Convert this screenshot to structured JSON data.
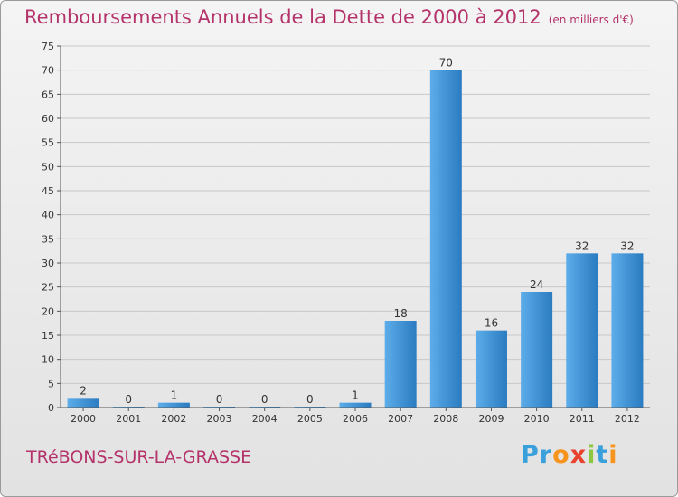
{
  "header": {
    "title": "Remboursements Annuels de la Dette de 2000 à 2012",
    "unit": "(en milliers d'€)"
  },
  "footer": {
    "commune": "TRéBONS-SUR-LA-GRASSE",
    "logo_letters": [
      "P",
      "r",
      "o",
      "x",
      "i",
      "t",
      "i"
    ],
    "logo_colors": [
      "#3aa0dc",
      "#3aa0dc",
      "#f7941d",
      "#e8432e",
      "#8dc63f",
      "#3aa0dc",
      "#f7941d"
    ]
  },
  "colors": {
    "bar_light": "#5dadea",
    "bar_dark": "#2a7bc0",
    "grid": "#c8c8c8",
    "title": "#b4336a"
  },
  "chart_data": {
    "type": "bar",
    "categories": [
      "2000",
      "2001",
      "2002",
      "2003",
      "2004",
      "2005",
      "2006",
      "2007",
      "2008",
      "2009",
      "2010",
      "2011",
      "2012"
    ],
    "values": [
      2,
      0,
      1,
      0,
      0,
      0,
      1,
      18,
      70,
      16,
      24,
      32,
      32
    ],
    "data_labels": [
      "2",
      "0",
      "1",
      "0",
      "0",
      "0",
      "1",
      "18",
      "70",
      "16",
      "24",
      "32",
      "32"
    ],
    "ylim": [
      0,
      75
    ],
    "yticks": [
      0,
      5,
      10,
      15,
      20,
      25,
      30,
      35,
      40,
      45,
      50,
      55,
      60,
      65,
      70,
      75
    ],
    "grid": true
  }
}
